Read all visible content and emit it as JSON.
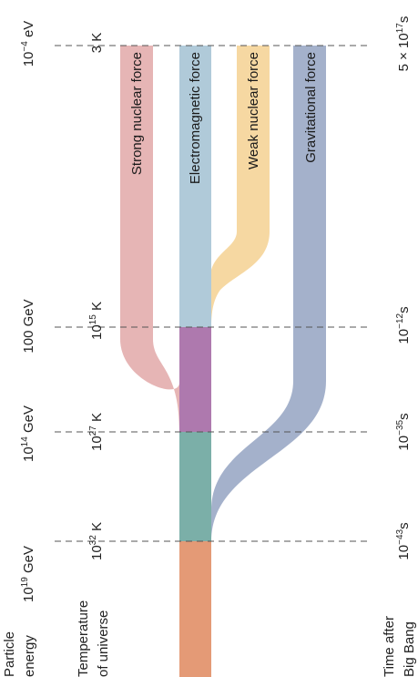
{
  "rows": {
    "particle_energy": {
      "header_line1": "Particle",
      "header_line2": "energy",
      "values": [
        {
          "base": "10",
          "sup": "19",
          "after": " GeV"
        },
        {
          "base": "10",
          "sup": "14",
          "after": " GeV"
        },
        {
          "base": "100 GeV",
          "sup": "",
          "after": ""
        },
        {
          "base": "10",
          "sup": "−4",
          "after": " eV"
        }
      ]
    },
    "temperature": {
      "header_line1": "Temperature",
      "header_line2": "of universe",
      "values": [
        {
          "base": "10",
          "sup": "32",
          "after": " K"
        },
        {
          "base": "10",
          "sup": "27",
          "after": " K"
        },
        {
          "base": "10",
          "sup": "15",
          "after": " K"
        },
        {
          "base": "3 K",
          "sup": "",
          "after": ""
        }
      ]
    },
    "time": {
      "header_line1": "Time after",
      "header_line2": "Big Bang",
      "values": [
        {
          "base": "10",
          "sup": "−43",
          "after": "s"
        },
        {
          "base": "10",
          "sup": "−35",
          "after": "s"
        },
        {
          "base": "10",
          "sup": "−12",
          "after": "s"
        },
        {
          "base": "5 × 10",
          "sup": "17",
          "after": "s"
        }
      ]
    }
  },
  "forces": {
    "strong": "Strong nuclear force",
    "electromagnetic": "Electromagnetic force",
    "weak": "Weak nuclear force",
    "gravitational": "Gravitational force"
  },
  "colors": {
    "unified": "#E49A76",
    "gut": "#7BAFA8",
    "electroweak": "#AE79AE",
    "strong": "#E6B5B5",
    "electromagnetic": "#B0CAD9",
    "weak": "#F6D8A2",
    "gravitational": "#A4B1CB"
  }
}
